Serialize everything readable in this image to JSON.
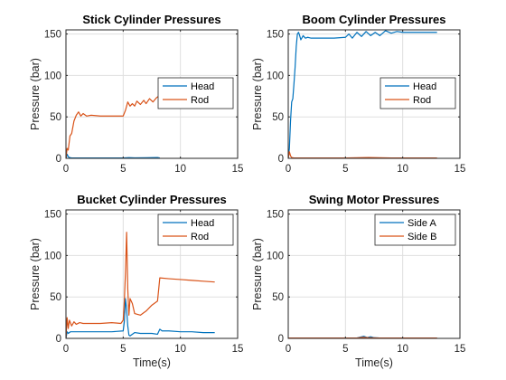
{
  "chart_data": [
    {
      "type": "line",
      "title": "Stick Cylinder Pressures",
      "xlabel": "",
      "ylabel": "Pressure (bar)",
      "xlim": [
        0,
        15
      ],
      "ylim": [
        0,
        155
      ],
      "xticks": [
        "0",
        "5",
        "10",
        "15"
      ],
      "yticks": [
        "0",
        "50",
        "100",
        "150"
      ],
      "grid": true,
      "legend": "mid-right",
      "series": [
        {
          "name": "Head",
          "color": "#0072BD",
          "x": [
            0,
            0.1,
            0.2,
            0.3,
            0.5,
            1,
            2,
            3,
            4,
            5,
            5.5,
            6,
            7,
            8,
            8.2
          ],
          "y": [
            0,
            5,
            2,
            1,
            0.5,
            0.5,
            0.5,
            0.5,
            0.5,
            0.5,
            0.8,
            0.6,
            0.7,
            1,
            0.5
          ]
        },
        {
          "name": "Rod",
          "color": "#D95319",
          "x": [
            0,
            0.1,
            0.2,
            0.35,
            0.5,
            0.7,
            0.9,
            1.1,
            1.3,
            1.5,
            1.8,
            2.2,
            3,
            4,
            5.0,
            5.2,
            5.4,
            5.6,
            5.8,
            6,
            6.2,
            6.5,
            6.8,
            7,
            7.3,
            7.6,
            7.9,
            8.2
          ],
          "y": [
            0,
            12,
            10,
            27,
            30,
            45,
            52,
            56,
            51,
            54,
            51,
            52,
            51,
            51,
            51,
            58,
            68,
            63,
            66,
            63,
            69,
            65,
            70,
            66,
            72,
            68,
            73,
            76
          ]
        }
      ]
    },
    {
      "type": "line",
      "title": "Boom Cylinder Pressures",
      "xlabel": "",
      "ylabel": "Pressure (bar)",
      "xlim": [
        0,
        15
      ],
      "ylim": [
        0,
        155
      ],
      "xticks": [
        "0",
        "5",
        "10",
        "15"
      ],
      "yticks": [
        "0",
        "50",
        "100",
        "150"
      ],
      "grid": true,
      "legend": "mid-right",
      "series": [
        {
          "name": "Head",
          "color": "#0072BD",
          "x": [
            0,
            0.1,
            0.2,
            0.3,
            0.4,
            0.5,
            0.6,
            0.7,
            0.8,
            0.9,
            1.0,
            1.1,
            1.3,
            1.5,
            1.7,
            2,
            3,
            4,
            5,
            5.3,
            5.6,
            6,
            6.4,
            6.8,
            7.2,
            7.6,
            8,
            8.5,
            9,
            9.5,
            10,
            11,
            12,
            13
          ],
          "y": [
            0,
            12,
            45,
            68,
            72,
            90,
            110,
            135,
            150,
            152,
            148,
            143,
            148,
            145,
            146,
            145,
            145,
            145,
            146,
            150,
            145,
            152,
            147,
            153,
            148,
            152,
            148,
            154,
            151,
            153,
            152,
            152,
            152,
            152
          ]
        },
        {
          "name": "Rod",
          "color": "#D95319",
          "x": [
            0,
            0.1,
            0.2,
            0.3,
            0.5,
            1,
            3,
            5,
            7,
            9,
            11,
            13
          ],
          "y": [
            0,
            8,
            3,
            1,
            0.5,
            0.5,
            0.5,
            0.5,
            1,
            0.5,
            0.5,
            0.5
          ]
        }
      ]
    },
    {
      "type": "line",
      "title": "Bucket Cylinder Pressures",
      "xlabel": "Time(s)",
      "ylabel": "Pressure (bar)",
      "xlim": [
        0,
        15
      ],
      "ylim": [
        0,
        155
      ],
      "xticks": [
        "0",
        "5",
        "10",
        "15"
      ],
      "yticks": [
        "0",
        "50",
        "100",
        "150"
      ],
      "grid": true,
      "legend": "top-right",
      "series": [
        {
          "name": "Head",
          "color": "#0072BD",
          "x": [
            0,
            0.1,
            0.2,
            0.4,
            1,
            2,
            3,
            4,
            5.0,
            5.1,
            5.2,
            5.3,
            5.4,
            5.5,
            5.6,
            6,
            6.5,
            7,
            7.5,
            8,
            8.2,
            8.4,
            9,
            10,
            11,
            12,
            13
          ],
          "y": [
            0,
            8,
            6,
            8,
            8,
            8,
            8,
            8,
            9,
            20,
            48,
            35,
            15,
            4,
            3,
            7,
            6,
            6,
            6,
            5,
            11,
            9,
            9,
            8,
            8,
            7,
            7
          ]
        },
        {
          "name": "Rod",
          "color": "#D95319",
          "x": [
            0,
            0.1,
            0.2,
            0.3,
            0.5,
            0.7,
            0.9,
            1.2,
            1.5,
            2,
            3,
            4,
            4.8,
            5.0,
            5.1,
            5.2,
            5.3,
            5.4,
            5.5,
            5.6,
            5.8,
            6,
            6.5,
            7,
            7.5,
            8,
            8.2,
            9,
            10,
            11,
            12,
            13
          ],
          "y": [
            0,
            25,
            12,
            22,
            15,
            20,
            17,
            19,
            18,
            18,
            18,
            19,
            18,
            22,
            45,
            80,
            128,
            60,
            28,
            48,
            42,
            30,
            28,
            33,
            40,
            45,
            73,
            72,
            71,
            70,
            69,
            68
          ]
        }
      ]
    },
    {
      "type": "line",
      "title": "Swing Motor Pressures",
      "xlabel": "Time(s)",
      "ylabel": "Pressure (bar)",
      "xlim": [
        0,
        15
      ],
      "ylim": [
        0,
        155
      ],
      "xticks": [
        "0",
        "5",
        "10",
        "15"
      ],
      "yticks": [
        "0",
        "50",
        "100",
        "150"
      ],
      "grid": true,
      "legend": "top-right",
      "series": [
        {
          "name": "Side A",
          "color": "#0072BD",
          "x": [
            0,
            1,
            2,
            3,
            4,
            5,
            6,
            6.3,
            6.6,
            6.9,
            7.2,
            7.5,
            8,
            9,
            10,
            11,
            12,
            13
          ],
          "y": [
            0.5,
            0.5,
            0.5,
            0.5,
            0.5,
            0.5,
            0.5,
            1.5,
            2.5,
            1,
            2,
            0.8,
            0.5,
            0.5,
            0.5,
            0.5,
            0.5,
            0.5
          ]
        },
        {
          "name": "Side B",
          "color": "#D95319",
          "x": [
            0,
            1,
            2,
            3,
            4,
            5,
            6,
            6.5,
            7,
            7.5,
            8,
            9,
            10,
            11,
            12,
            13
          ],
          "y": [
            0.4,
            0.4,
            0.4,
            0.4,
            0.4,
            0.4,
            0.4,
            1.2,
            0.8,
            0.6,
            0.4,
            0.4,
            0.4,
            0.4,
            0.4,
            0.4
          ]
        }
      ]
    }
  ]
}
